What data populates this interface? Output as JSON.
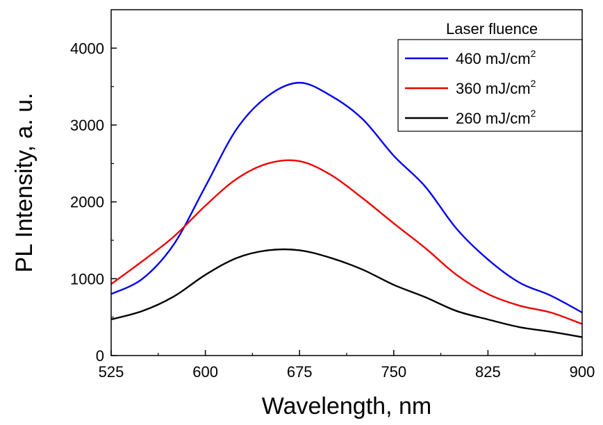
{
  "chart_data": {
    "type": "line",
    "xlabel": "Wavelength, nm",
    "ylabel": "PL Intensity, a. u.",
    "xlim": [
      525,
      900
    ],
    "ylim": [
      0,
      4500
    ],
    "x_ticks": [
      525,
      600,
      675,
      750,
      825,
      900
    ],
    "y_ticks": [
      0,
      1000,
      2000,
      3000,
      4000
    ],
    "x_tick_labels": [
      "525",
      "600",
      "675",
      "750",
      "825",
      "900"
    ],
    "y_tick_labels": [
      "0",
      "1000",
      "2000",
      "3000",
      "4000"
    ],
    "grid": false,
    "legend": {
      "title": "Laser fluence",
      "placement": "top-right",
      "entries": [
        {
          "base": "460 mJ/cm",
          "sup": "2"
        },
        {
          "base": "360 mJ/cm",
          "sup": "2"
        },
        {
          "base": "260 mJ/cm",
          "sup": "2"
        }
      ]
    },
    "x": [
      525,
      550,
      575,
      600,
      625,
      650,
      675,
      700,
      725,
      750,
      775,
      800,
      825,
      850,
      875,
      900
    ],
    "series": [
      {
        "name": "460 mJ/cm2",
        "color": "#0000ee",
        "values": [
          800,
          1000,
          1450,
          2200,
          2950,
          3380,
          3550,
          3380,
          3080,
          2600,
          2200,
          1650,
          1250,
          950,
          780,
          560
        ]
      },
      {
        "name": "360 mJ/cm2",
        "color": "#ee0000",
        "values": [
          930,
          1230,
          1550,
          1950,
          2300,
          2500,
          2530,
          2350,
          2050,
          1720,
          1400,
          1050,
          800,
          650,
          560,
          410
        ]
      },
      {
        "name": "260 mJ/cm2",
        "color": "#000000",
        "values": [
          470,
          580,
          770,
          1050,
          1270,
          1370,
          1370,
          1270,
          1120,
          920,
          760,
          580,
          470,
          370,
          310,
          240
        ]
      }
    ]
  }
}
